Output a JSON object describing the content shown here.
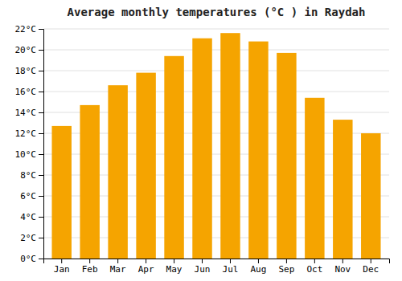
{
  "chart_data": {
    "type": "bar",
    "title": "Average monthly temperatures (°C ) in Raydah",
    "categories": [
      "Jan",
      "Feb",
      "Mar",
      "Apr",
      "May",
      "Jun",
      "Jul",
      "Aug",
      "Sep",
      "Oct",
      "Nov",
      "Dec"
    ],
    "values": [
      12.7,
      14.7,
      16.6,
      17.8,
      19.4,
      21.1,
      21.6,
      20.8,
      19.7,
      15.4,
      13.3,
      12.0
    ],
    "color": "#F5A400",
    "ylim": [
      0,
      22
    ],
    "yticks": [
      {
        "value": 0,
        "label": "0°C"
      },
      {
        "value": 2,
        "label": "2°C"
      },
      {
        "value": 4,
        "label": "4°C"
      },
      {
        "value": 6,
        "label": "6°C"
      },
      {
        "value": 8,
        "label": "8°C"
      },
      {
        "value": 10,
        "label": "10°C"
      },
      {
        "value": 12,
        "label": "12°C"
      },
      {
        "value": 14,
        "label": "14°C"
      },
      {
        "value": 16,
        "label": "16°C"
      },
      {
        "value": 18,
        "label": "18°C"
      },
      {
        "value": 20,
        "label": "20°C"
      },
      {
        "value": 22,
        "label": "22°C"
      }
    ],
    "grid": true
  }
}
